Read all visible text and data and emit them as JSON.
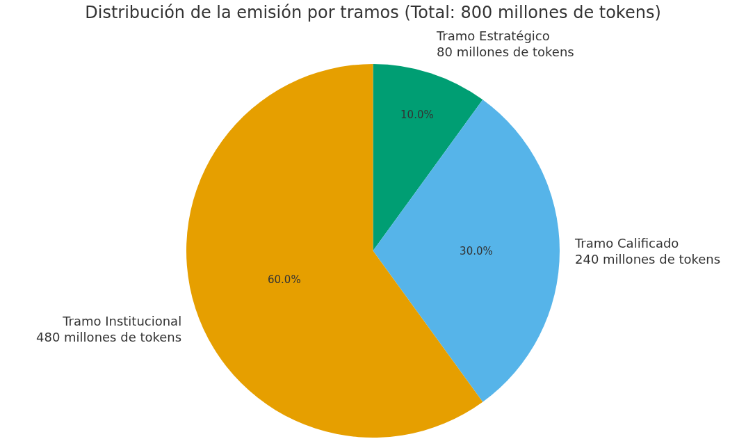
{
  "chart_data": {
    "type": "pie",
    "title": "Distribución de la emisión por tramos (Total: 800 millones de tokens)",
    "categories": [
      "Tramo Estratégico\n80 millones de tokens",
      "Tramo Calificado\n240 millones de tokens",
      "Tramo Institucional\n480 millones de tokens"
    ],
    "values": [
      10,
      30,
      60
    ],
    "colors": [
      "#009e73",
      "#56b4e9",
      "#e69f00"
    ],
    "value_labels": [
      "10.0%",
      "30.0%",
      "60.0%"
    ],
    "legend": false
  }
}
